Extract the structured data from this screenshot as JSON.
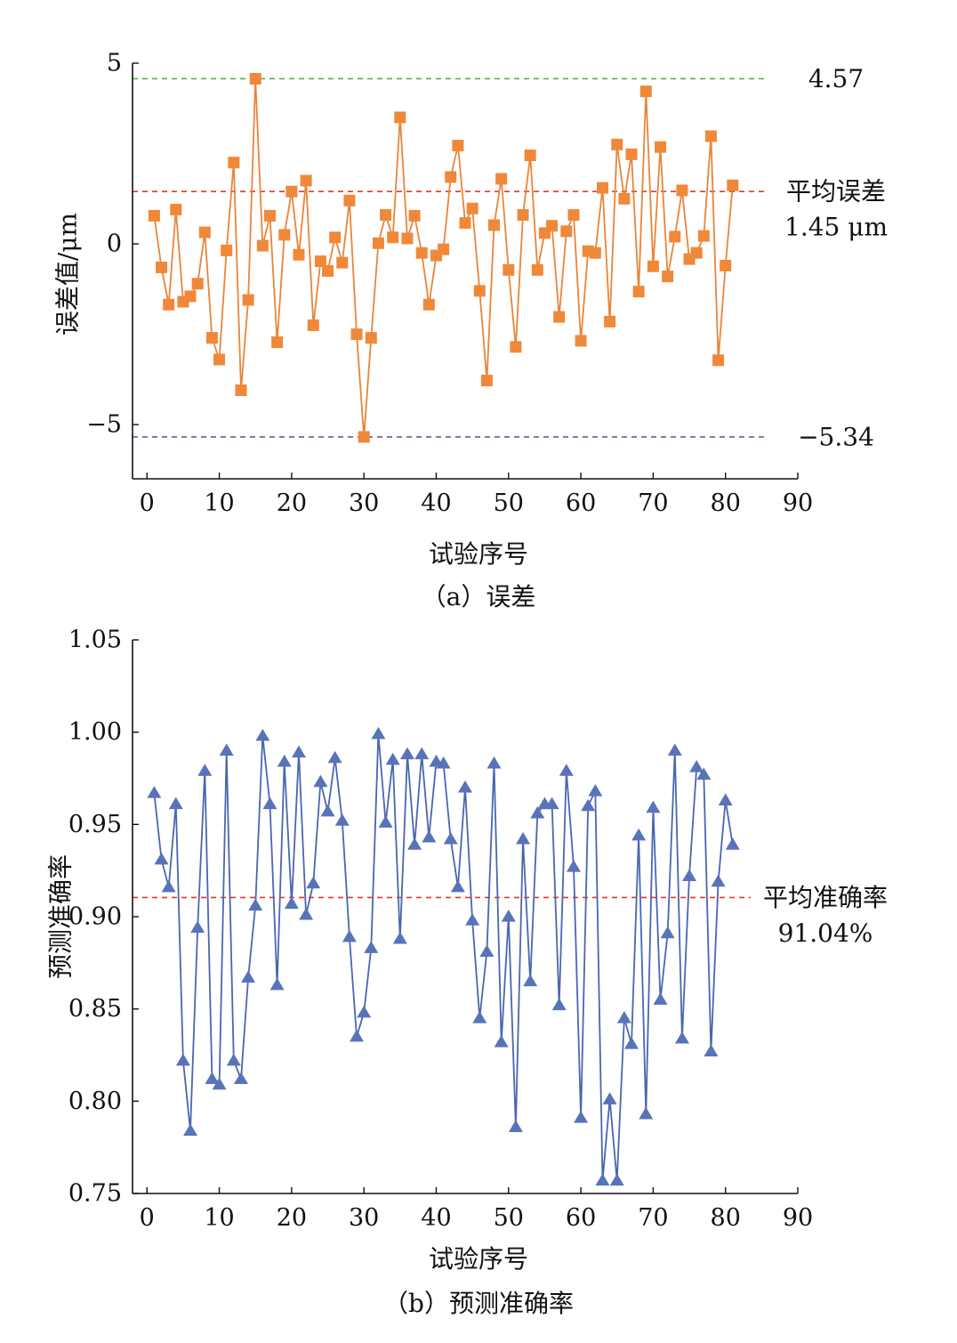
{
  "chart_data": [
    {
      "type": "line",
      "caption": "（a）误差",
      "xlabel": "试验序号",
      "ylabel": "误差值/μm",
      "xlim": [
        -2,
        90
      ],
      "ylim": [
        -6.5,
        5
      ],
      "xticks": [
        0,
        10,
        20,
        30,
        40,
        50,
        60,
        70,
        80,
        90
      ],
      "yticks": [
        -5,
        0,
        5
      ],
      "ytick_labels": [
        "−5",
        "0",
        "5"
      ],
      "grid": false,
      "marker": "square",
      "line_color": "#e8853a",
      "marker_color": "#f0883a",
      "series": [
        {
          "x": [
            1,
            2,
            3,
            4,
            5,
            6,
            7,
            8,
            9,
            10,
            11,
            12,
            13,
            14,
            15,
            16,
            17,
            18,
            19,
            20,
            21,
            22,
            23,
            24,
            25,
            26,
            27,
            28,
            29,
            30,
            31,
            32,
            33,
            34,
            35,
            36,
            37,
            38,
            39,
            40,
            41,
            42,
            43,
            44,
            45,
            46,
            47,
            48,
            49,
            50,
            51,
            52,
            53,
            54,
            55,
            56,
            57,
            58,
            59,
            60,
            61,
            62,
            63,
            64,
            65,
            66,
            67,
            68,
            69,
            70,
            71,
            72,
            73,
            74,
            75,
            76,
            77,
            78,
            79,
            80,
            81
          ],
          "values": [
            0.78,
            -0.65,
            -1.68,
            0.95,
            -1.6,
            -1.45,
            -1.1,
            0.32,
            -2.6,
            -3.2,
            -0.18,
            2.25,
            -4.05,
            -1.55,
            4.57,
            -0.05,
            0.78,
            -2.72,
            0.25,
            1.45,
            -0.3,
            1.75,
            -2.25,
            -0.48,
            -0.75,
            0.18,
            -0.52,
            1.2,
            -2.5,
            -5.34,
            -2.6,
            0.02,
            0.8,
            0.18,
            3.5,
            0.15,
            0.78,
            -0.25,
            -1.68,
            -0.32,
            -0.15,
            1.85,
            2.72,
            0.58,
            0.98,
            -1.3,
            -3.78,
            0.52,
            1.8,
            -0.72,
            -2.85,
            0.8,
            2.45,
            -0.72,
            0.3,
            0.5,
            -2.02,
            0.35,
            0.8,
            -2.68,
            -0.2,
            -0.25,
            1.55,
            -2.15,
            2.75,
            1.25,
            2.48,
            -1.32,
            4.22,
            -0.62,
            2.68,
            -0.9,
            0.2,
            1.48,
            -0.42,
            -0.25,
            0.22,
            2.98,
            -3.22,
            -0.6,
            1.62
          ]
        }
      ],
      "ref_lines": [
        {
          "value": 4.57,
          "color": "#55b440",
          "label": "4.57"
        },
        {
          "value": 1.45,
          "color": "#e03a2e",
          "label_line1": "平均误差",
          "label_line2": "1.45 μm"
        },
        {
          "value": -5.34,
          "color": "#7b4f9e",
          "label": "−5.34"
        }
      ]
    },
    {
      "type": "line",
      "caption": "（b）预测准确率",
      "xlabel": "试验序号",
      "ylabel": "预测准确率",
      "xlim": [
        -2,
        90
      ],
      "ylim": [
        0.75,
        1.05
      ],
      "xticks": [
        0,
        10,
        20,
        30,
        40,
        50,
        60,
        70,
        80,
        90
      ],
      "yticks": [
        0.75,
        0.8,
        0.85,
        0.9,
        0.95,
        1.0,
        1.05
      ],
      "ytick_labels": [
        "0.75",
        "0.80",
        "0.85",
        "0.90",
        "0.95",
        "1.00",
        "1.05"
      ],
      "grid": false,
      "marker": "triangle",
      "line_color": "#4a66b0",
      "marker_color": "#5873b8",
      "series": [
        {
          "x": [
            1,
            2,
            3,
            4,
            5,
            6,
            7,
            8,
            9,
            10,
            11,
            12,
            13,
            14,
            15,
            16,
            17,
            18,
            19,
            20,
            21,
            22,
            23,
            24,
            25,
            26,
            27,
            28,
            29,
            30,
            31,
            32,
            33,
            34,
            35,
            36,
            37,
            38,
            39,
            40,
            41,
            42,
            43,
            44,
            45,
            46,
            47,
            48,
            49,
            50,
            51,
            52,
            53,
            54,
            55,
            56,
            57,
            58,
            59,
            60,
            61,
            62,
            63,
            64,
            65,
            66,
            67,
            68,
            69,
            70,
            71,
            72,
            73,
            74,
            75,
            76,
            77,
            78,
            79,
            80,
            81
          ],
          "values": [
            0.967,
            0.931,
            0.916,
            0.961,
            0.822,
            0.784,
            0.894,
            0.979,
            0.812,
            0.809,
            0.99,
            0.822,
            0.812,
            0.867,
            0.906,
            0.998,
            0.961,
            0.863,
            0.984,
            0.907,
            0.989,
            0.901,
            0.918,
            0.973,
            0.957,
            0.986,
            0.952,
            0.889,
            0.835,
            0.848,
            0.883,
            0.999,
            0.951,
            0.985,
            0.888,
            0.988,
            0.939,
            0.988,
            0.943,
            0.984,
            0.983,
            0.942,
            0.916,
            0.97,
            0.898,
            0.845,
            0.881,
            0.983,
            0.832,
            0.9,
            0.786,
            0.942,
            0.865,
            0.956,
            0.961,
            0.961,
            0.852,
            0.979,
            0.927,
            0.791,
            0.96,
            0.968,
            0.757,
            0.801,
            0.757,
            0.845,
            0.831,
            0.944,
            0.793,
            0.959,
            0.855,
            0.891,
            0.99,
            0.834,
            0.922,
            0.981,
            0.977,
            0.827,
            0.919,
            0.963,
            0.939
          ]
        }
      ],
      "ref_lines": [
        {
          "value": 0.9104,
          "color": "#e03a2e",
          "label_line1": "平均准确率",
          "label_line2": "91.04%"
        }
      ]
    }
  ]
}
